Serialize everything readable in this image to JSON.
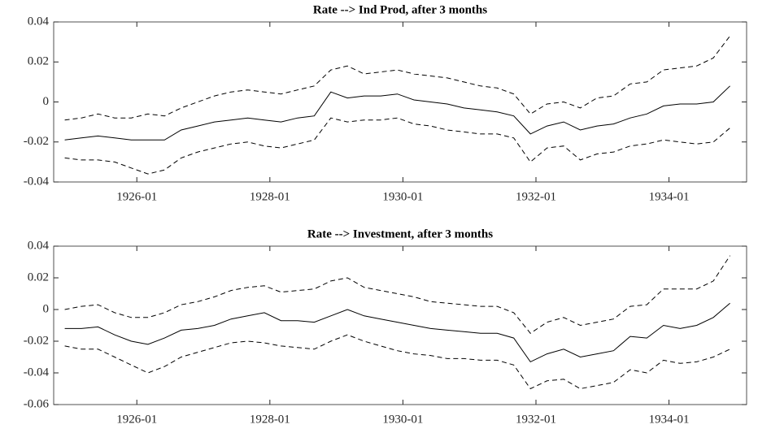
{
  "chart_data": [
    {
      "type": "line",
      "title": "Rate --> Ind Prod, after 3 months",
      "x": [
        "1924-12",
        "1925-03",
        "1925-06",
        "1925-09",
        "1925-12",
        "1926-03",
        "1926-06",
        "1926-09",
        "1926-12",
        "1927-03",
        "1927-06",
        "1927-09",
        "1927-12",
        "1928-03",
        "1928-06",
        "1928-09",
        "1928-12",
        "1929-03",
        "1929-06",
        "1929-09",
        "1929-12",
        "1930-03",
        "1930-06",
        "1930-09",
        "1930-12",
        "1931-03",
        "1931-06",
        "1931-09",
        "1931-12",
        "1932-03",
        "1932-06",
        "1932-09",
        "1932-12",
        "1933-03",
        "1933-06",
        "1933-09",
        "1933-12",
        "1934-03",
        "1934-06",
        "1934-09",
        "1934-12"
      ],
      "xlim": [
        "1924-10",
        "1935-03"
      ],
      "xticks": [
        "1926-01",
        "1928-01",
        "1930-01",
        "1932-01",
        "1934-01"
      ],
      "ylim": [
        -0.04,
        0.04
      ],
      "yticks": [
        -0.04,
        -0.02,
        0,
        0.02,
        0.04
      ],
      "series": [
        {
          "color": "#000000",
          "dashed": false,
          "values": [
            -0.019,
            -0.018,
            -0.017,
            -0.018,
            -0.019,
            -0.019,
            -0.019,
            -0.014,
            -0.012,
            -0.01,
            -0.009,
            -0.008,
            -0.009,
            -0.01,
            -0.008,
            -0.007,
            0.005,
            0.002,
            0.003,
            0.003,
            0.004,
            0.001,
            0,
            -0.001,
            -0.003,
            -0.004,
            -0.005,
            -0.007,
            -0.016,
            -0.012,
            -0.01,
            -0.014,
            -0.012,
            -0.011,
            -0.008,
            -0.006,
            -0.002,
            -0.001,
            -0.001,
            0,
            0.008
          ]
        },
        {
          "color": "#000000",
          "dashed": true,
          "values": [
            -0.009,
            -0.008,
            -0.006,
            -0.008,
            -0.008,
            -0.006,
            -0.007,
            -0.003,
            0,
            0.003,
            0.005,
            0.006,
            0.005,
            0.004,
            0.006,
            0.008,
            0.016,
            0.018,
            0.014,
            0.015,
            0.016,
            0.014,
            0.013,
            0.012,
            0.01,
            0.008,
            0.007,
            0.004,
            -0.006,
            -0.001,
            0,
            -0.003,
            0.002,
            0.003,
            0.009,
            0.01,
            0.016,
            0.017,
            0.018,
            0.022,
            0.033
          ]
        },
        {
          "color": "#000000",
          "dashed": true,
          "values": [
            -0.028,
            -0.029,
            -0.029,
            -0.03,
            -0.033,
            -0.036,
            -0.034,
            -0.028,
            -0.025,
            -0.023,
            -0.021,
            -0.02,
            -0.022,
            -0.023,
            -0.021,
            -0.019,
            -0.008,
            -0.01,
            -0.009,
            -0.009,
            -0.008,
            -0.011,
            -0.012,
            -0.014,
            -0.015,
            -0.016,
            -0.016,
            -0.018,
            -0.03,
            -0.023,
            -0.022,
            -0.029,
            -0.026,
            -0.025,
            -0.022,
            -0.021,
            -0.019,
            -0.02,
            -0.021,
            -0.02,
            -0.013
          ]
        }
      ]
    },
    {
      "type": "line",
      "title": "Rate --> Investment, after 3 months",
      "x": [
        "1924-12",
        "1925-03",
        "1925-06",
        "1925-09",
        "1925-12",
        "1926-03",
        "1926-06",
        "1926-09",
        "1926-12",
        "1927-03",
        "1927-06",
        "1927-09",
        "1927-12",
        "1928-03",
        "1928-06",
        "1928-09",
        "1928-12",
        "1929-03",
        "1929-06",
        "1929-09",
        "1929-12",
        "1930-03",
        "1930-06",
        "1930-09",
        "1930-12",
        "1931-03",
        "1931-06",
        "1931-09",
        "1931-12",
        "1932-03",
        "1932-06",
        "1932-09",
        "1932-12",
        "1933-03",
        "1933-06",
        "1933-09",
        "1933-12",
        "1934-03",
        "1934-06",
        "1934-09",
        "1934-12"
      ],
      "xlim": [
        "1924-10",
        "1935-03"
      ],
      "xticks": [
        "1926-01",
        "1928-01",
        "1930-01",
        "1932-01",
        "1934-01"
      ],
      "ylim": [
        -0.06,
        0.04
      ],
      "yticks": [
        -0.06,
        -0.04,
        -0.02,
        0,
        0.02,
        0.04
      ],
      "series": [
        {
          "color": "#000000",
          "dashed": false,
          "values": [
            -0.012,
            -0.012,
            -0.011,
            -0.016,
            -0.02,
            -0.022,
            -0.018,
            -0.013,
            -0.012,
            -0.01,
            -0.006,
            -0.004,
            -0.002,
            -0.007,
            -0.007,
            -0.008,
            -0.004,
            0,
            -0.004,
            -0.006,
            -0.008,
            -0.01,
            -0.012,
            -0.013,
            -0.014,
            -0.015,
            -0.015,
            -0.018,
            -0.033,
            -0.028,
            -0.025,
            -0.03,
            -0.028,
            -0.026,
            -0.017,
            -0.018,
            -0.01,
            -0.012,
            -0.01,
            -0.005,
            0.004
          ]
        },
        {
          "color": "#000000",
          "dashed": true,
          "values": [
            0,
            0.002,
            0.003,
            -0.002,
            -0.005,
            -0.005,
            -0.002,
            0.003,
            0.005,
            0.008,
            0.012,
            0.014,
            0.015,
            0.011,
            0.012,
            0.013,
            0.018,
            0.02,
            0.014,
            0.012,
            0.01,
            0.008,
            0.005,
            0.004,
            0.003,
            0.002,
            0.002,
            -0.002,
            -0.015,
            -0.008,
            -0.005,
            -0.01,
            -0.008,
            -0.006,
            0.002,
            0.003,
            0.013,
            0.013,
            0.013,
            0.018,
            0.034
          ]
        },
        {
          "color": "#000000",
          "dashed": true,
          "values": [
            -0.023,
            -0.025,
            -0.025,
            -0.03,
            -0.035,
            -0.04,
            -0.036,
            -0.03,
            -0.027,
            -0.024,
            -0.021,
            -0.02,
            -0.021,
            -0.023,
            -0.024,
            -0.025,
            -0.02,
            -0.016,
            -0.02,
            -0.023,
            -0.026,
            -0.028,
            -0.029,
            -0.031,
            -0.031,
            -0.032,
            -0.032,
            -0.035,
            -0.05,
            -0.045,
            -0.044,
            -0.05,
            -0.048,
            -0.046,
            -0.038,
            -0.04,
            -0.032,
            -0.034,
            -0.033,
            -0.03,
            -0.025
          ]
        }
      ]
    }
  ]
}
